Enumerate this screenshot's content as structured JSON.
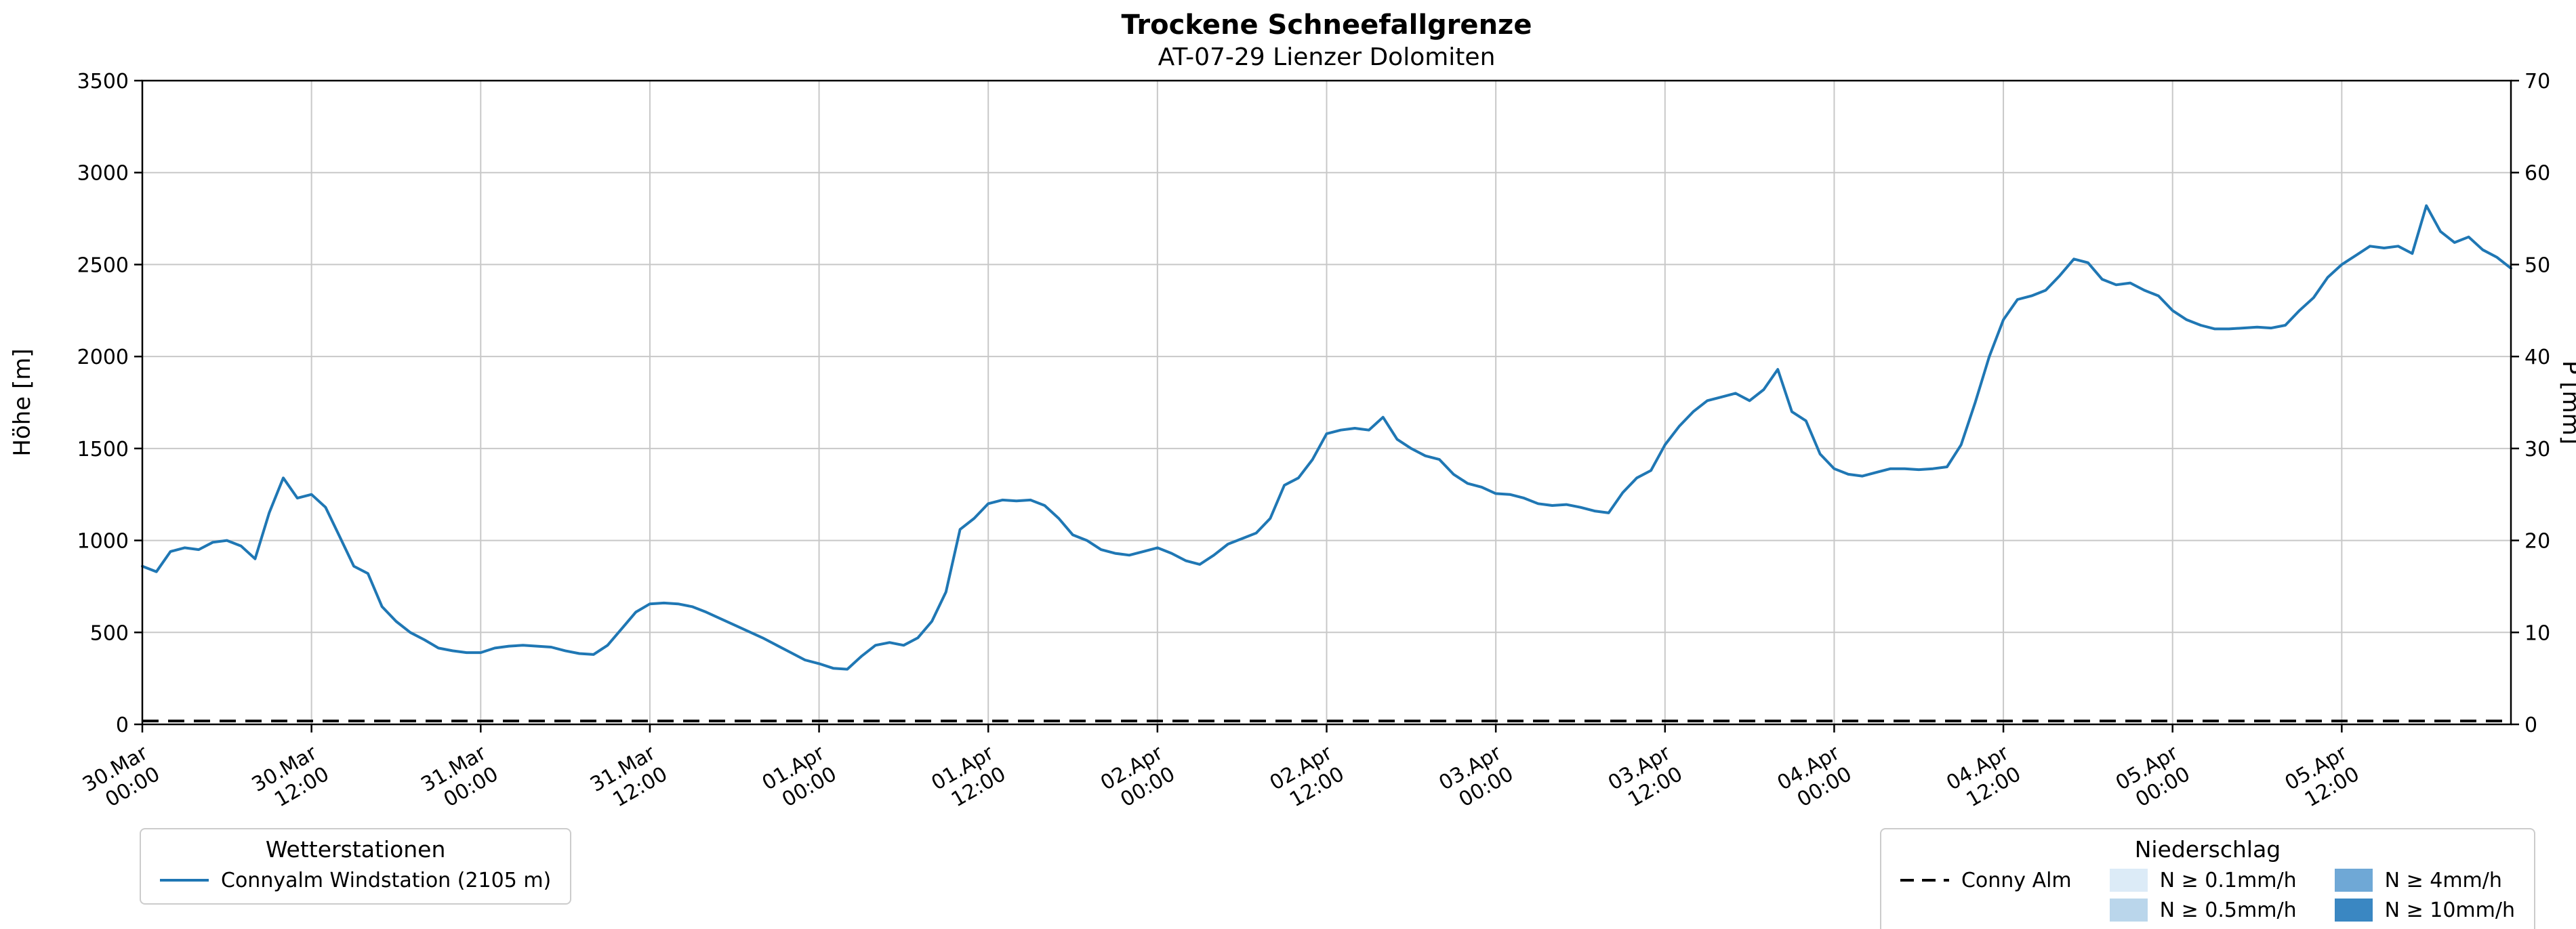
{
  "legend_stations": {
    "title": "Wetterstationen",
    "items": [
      {
        "label": "Connyalm Windstation (2105 m)",
        "color": "#1f77b4"
      }
    ]
  },
  "legend_precip": {
    "title": "Niederschlag",
    "line_item": {
      "label": "Conny Alm",
      "color": "#000000"
    },
    "patch_items": [
      {
        "label": "N ≥ 0.1mm/h",
        "color": "#dcebf7"
      },
      {
        "label": "N ≥ 0.5mm/h",
        "color": "#bad6eb"
      },
      {
        "label": "N ≥ 4mm/h",
        "color": "#6fa8d6"
      },
      {
        "label": "N ≥ 10mm/h",
        "color": "#3a87c2"
      }
    ]
  },
  "chart_data": {
    "type": "line",
    "title": "Trockene Schneefallgrenze",
    "subtitle": "AT-07-29 Lienzer Dolomiten",
    "grid": true,
    "x_axis": {
      "unit": "hours since 30.Mar 00:00",
      "range": [
        0,
        168
      ],
      "ticks": [
        {
          "hour": 0,
          "label": [
            "30.Mar",
            "00:00"
          ]
        },
        {
          "hour": 12,
          "label": [
            "30.Mar",
            "12:00"
          ]
        },
        {
          "hour": 24,
          "label": [
            "31.Mar",
            "00:00"
          ]
        },
        {
          "hour": 36,
          "label": [
            "31.Mar",
            "12:00"
          ]
        },
        {
          "hour": 48,
          "label": [
            "01.Apr",
            "00:00"
          ]
        },
        {
          "hour": 60,
          "label": [
            "01.Apr",
            "12:00"
          ]
        },
        {
          "hour": 72,
          "label": [
            "02.Apr",
            "00:00"
          ]
        },
        {
          "hour": 84,
          "label": [
            "02.Apr",
            "12:00"
          ]
        },
        {
          "hour": 96,
          "label": [
            "03.Apr",
            "00:00"
          ]
        },
        {
          "hour": 108,
          "label": [
            "03.Apr",
            "12:00"
          ]
        },
        {
          "hour": 120,
          "label": [
            "04.Apr",
            "00:00"
          ]
        },
        {
          "hour": 132,
          "label": [
            "04.Apr",
            "12:00"
          ]
        },
        {
          "hour": 144,
          "label": [
            "05.Apr",
            "00:00"
          ]
        },
        {
          "hour": 156,
          "label": [
            "05.Apr",
            "12:00"
          ]
        }
      ]
    },
    "y_left": {
      "label": "Höhe [m]",
      "min": 0,
      "max": 3500,
      "step": 500
    },
    "y_right": {
      "label": "P [mm]",
      "min": 0,
      "max": 70,
      "step": 10
    },
    "series": [
      {
        "name": "Connyalm Windstation (2105 m)",
        "axis": "left",
        "color": "#1f77b4",
        "style": "solid",
        "x_start_hour": 0,
        "x_step_hours": 1,
        "values": [
          860,
          830,
          940,
          960,
          950,
          990,
          1000,
          970,
          900,
          1150,
          1340,
          1230,
          1250,
          1180,
          1020,
          860,
          820,
          640,
          560,
          500,
          460,
          415,
          400,
          390,
          390,
          415,
          425,
          430,
          425,
          420,
          400,
          385,
          380,
          430,
          520,
          610,
          655,
          660,
          655,
          640,
          610,
          575,
          540,
          505,
          470,
          430,
          390,
          350,
          330,
          305,
          300,
          370,
          430,
          445,
          430,
          470,
          560,
          720,
          1060,
          1120,
          1200,
          1220,
          1215,
          1220,
          1190,
          1120,
          1030,
          1000,
          950,
          930,
          920,
          940,
          960,
          930,
          890,
          870,
          920,
          980,
          1010,
          1040,
          1120,
          1300,
          1340,
          1440,
          1580,
          1600,
          1610,
          1600,
          1670,
          1550,
          1500,
          1460,
          1440,
          1360,
          1310,
          1290,
          1255,
          1250,
          1230,
          1200,
          1190,
          1195,
          1180,
          1160,
          1150,
          1260,
          1340,
          1380,
          1520,
          1620,
          1700,
          1760,
          1780,
          1800,
          1760,
          1820,
          1930,
          1700,
          1650,
          1470,
          1390,
          1360,
          1350,
          1370,
          1390,
          1390,
          1385,
          1390,
          1400,
          1520,
          1750,
          2000,
          2200,
          2310,
          2330,
          2360,
          2440,
          2530,
          2510,
          2420,
          2390,
          2400,
          2360,
          2330,
          2250,
          2200,
          2170,
          2150,
          2150,
          2155,
          2160,
          2155,
          2170,
          2250,
          2320,
          2430,
          2500,
          2550,
          2600,
          2590,
          2600,
          2560,
          2820,
          2680,
          2620,
          2650,
          2580,
          2540,
          2480
        ]
      },
      {
        "name": "Conny Alm",
        "axis": "right",
        "color": "#000000",
        "style": "dashed",
        "constant_value": 0
      }
    ]
  }
}
